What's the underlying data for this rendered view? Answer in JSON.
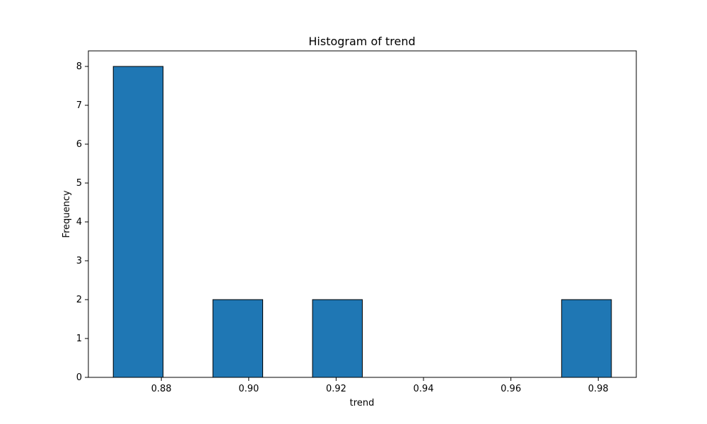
{
  "chart_data": {
    "type": "bar",
    "title": "Histogram of trend",
    "xlabel": "trend",
    "ylabel": "Frequency",
    "bins": [
      {
        "start": 0.869,
        "end": 0.8804,
        "count": 8
      },
      {
        "start": 0.8804,
        "end": 0.8918,
        "count": 0
      },
      {
        "start": 0.8918,
        "end": 0.9032,
        "count": 2
      },
      {
        "start": 0.9032,
        "end": 0.9146,
        "count": 0
      },
      {
        "start": 0.9146,
        "end": 0.926,
        "count": 2
      },
      {
        "start": 0.926,
        "end": 0.9374,
        "count": 0
      },
      {
        "start": 0.9374,
        "end": 0.9488,
        "count": 0
      },
      {
        "start": 0.9488,
        "end": 0.9602,
        "count": 0
      },
      {
        "start": 0.9602,
        "end": 0.9716,
        "count": 0
      },
      {
        "start": 0.9716,
        "end": 0.983,
        "count": 2
      }
    ],
    "xlim": [
      0.8633,
      0.9887
    ],
    "ylim": [
      0,
      8.4
    ],
    "x_ticks": [
      0.88,
      0.9,
      0.92,
      0.94,
      0.96,
      0.98
    ],
    "x_tick_labels": [
      "0.88",
      "0.90",
      "0.92",
      "0.94",
      "0.96",
      "0.98"
    ],
    "y_ticks": [
      0,
      1,
      2,
      3,
      4,
      5,
      6,
      7,
      8
    ],
    "y_tick_labels": [
      "0",
      "1",
      "2",
      "3",
      "4",
      "5",
      "6",
      "7",
      "8"
    ],
    "bar_color": "#1f77b4",
    "edge_color": "#000000",
    "grid": false,
    "legend": "none"
  }
}
